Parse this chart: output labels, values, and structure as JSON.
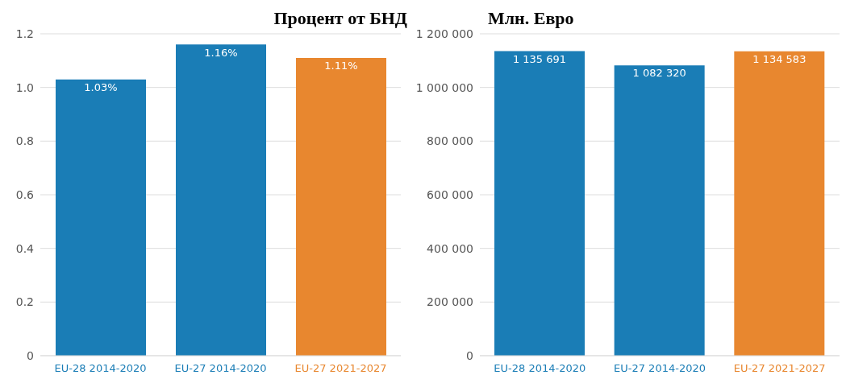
{
  "chart_data": [
    {
      "type": "bar",
      "title": "Процент от БНД",
      "categories": [
        "EU-28 2014-2020",
        "EU-27 2014-2020",
        "EU-27 2021-2027"
      ],
      "values": [
        1.03,
        1.16,
        1.11
      ],
      "colors": [
        "#1a7db6",
        "#1a7db6",
        "#e8872f"
      ],
      "value_labels": [
        "1.03%",
        "1.16%",
        "1.11%"
      ],
      "ylim": [
        0,
        1.2
      ],
      "yticks": [
        0,
        0.2,
        0.4,
        0.6,
        0.8,
        {
          "value": 1,
          "label": "1.0"
        },
        1.2
      ],
      "grid": "y"
    },
    {
      "type": "bar",
      "title": "Млн. Евро",
      "categories": [
        "EU-28 2014-2020",
        "EU-27 2014-2020",
        "EU-27 2021-2027"
      ],
      "values": [
        1135691,
        1082320,
        1134583
      ],
      "colors": [
        "#1a7db6",
        "#1a7db6",
        "#e8872f"
      ],
      "value_labels": [
        "1 135 691",
        "1 082 320",
        "1 134 583"
      ],
      "ylim": [
        0,
        1200000
      ],
      "yticks": [
        0,
        {
          "value": 200000,
          "label": "200 000"
        },
        {
          "value": 400000,
          "label": "400 000"
        },
        {
          "value": 600000,
          "label": "600 000"
        },
        {
          "value": 800000,
          "label": "800 000"
        },
        {
          "value": 1000000,
          "label": "1 000 000"
        },
        {
          "value": 1200000,
          "label": "1 200 000"
        }
      ],
      "grid": "y"
    }
  ]
}
